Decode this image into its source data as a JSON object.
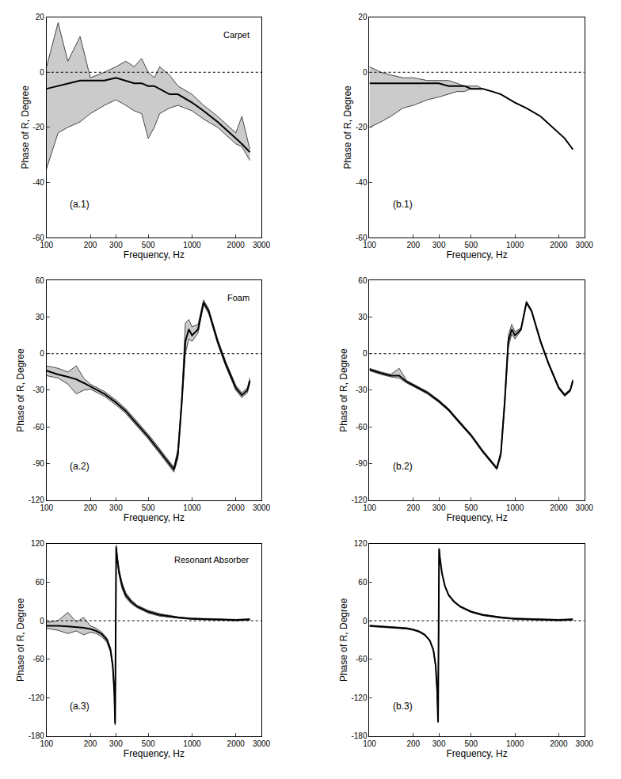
{
  "chart_data": [
    {
      "type": "line",
      "title": "Carpet",
      "annotations": [
        "(a.1)"
      ],
      "xlabel": "Frequency, Hz",
      "ylabel": "Phase of R, Degree",
      "log": "x",
      "grid": false,
      "hline": 0,
      "xlim": [
        100,
        3000
      ],
      "xticks": [
        100,
        200,
        300,
        500,
        1000,
        2000,
        3000
      ],
      "ylim": [
        -60,
        20
      ],
      "yticks": [
        -60,
        -40,
        -20,
        0,
        20
      ],
      "x": [
        100,
        120,
        140,
        170,
        200,
        250,
        300,
        350,
        400,
        450,
        500,
        550,
        600,
        700,
        800,
        1000,
        1200,
        1500,
        2000,
        2200,
        2500
      ],
      "series": [
        {
          "color": "#000000",
          "values": [
            -6,
            -5,
            -4,
            -3,
            -3,
            -3,
            -2,
            -3,
            -4,
            -4,
            -5,
            -5,
            -6,
            -8,
            -8,
            -11,
            -14,
            -18,
            -24,
            -26,
            -29
          ],
          "upper": [
            2,
            18,
            4,
            13,
            -2,
            0,
            2,
            4,
            2,
            5,
            0,
            -2,
            2,
            -1,
            -5,
            -8,
            -12,
            -16,
            -22,
            -16,
            -28
          ],
          "lower": [
            -35,
            -22,
            -20,
            -18,
            -15,
            -12,
            -10,
            -12,
            -14,
            -15,
            -24,
            -20,
            -15,
            -13,
            -12,
            -14,
            -17,
            -20,
            -26,
            -27,
            -32
          ]
        }
      ]
    },
    {
      "type": "line",
      "annotations": [
        "(b.1)"
      ],
      "xlabel": "Frequency, Hz",
      "ylabel": "Phase of R, Degree",
      "log": "x",
      "grid": false,
      "hline": 0,
      "xlim": [
        100,
        3000
      ],
      "xticks": [
        100,
        200,
        300,
        500,
        1000,
        2000,
        3000
      ],
      "ylim": [
        -60,
        20
      ],
      "yticks": [
        -60,
        -40,
        -20,
        0,
        20
      ],
      "x": [
        100,
        120,
        140,
        170,
        200,
        250,
        300,
        350,
        400,
        450,
        500,
        550,
        600,
        700,
        800,
        1000,
        1200,
        1500,
        2000,
        2200,
        2500
      ],
      "series": [
        {
          "color": "#000000",
          "values": [
            -4,
            -4,
            -4,
            -4,
            -4,
            -4,
            -4,
            -5,
            -5,
            -5,
            -6,
            -6,
            -6,
            -7,
            -8,
            -11,
            -13,
            -16,
            -22,
            -24,
            -28
          ],
          "upper": [
            2,
            0,
            -1,
            -2,
            -2,
            -3,
            -3,
            -3,
            -4,
            -5,
            -5,
            -5,
            -6,
            -7,
            -8,
            -11,
            -13,
            -16,
            -22,
            -24,
            -28
          ],
          "lower": [
            -20,
            -18,
            -16,
            -13,
            -12,
            -10,
            -9,
            -8,
            -7,
            -7,
            -6,
            -6,
            -6,
            -7,
            -8,
            -11,
            -13,
            -16,
            -22,
            -24,
            -28
          ]
        }
      ]
    },
    {
      "type": "line",
      "title": "Foam",
      "annotations": [
        "(a.2)"
      ],
      "xlabel": "Frequency, Hz",
      "ylabel": "Phase of R, Degree",
      "log": "x",
      "grid": false,
      "hline": 0,
      "xlim": [
        100,
        3000
      ],
      "xticks": [
        100,
        200,
        300,
        500,
        1000,
        2000,
        3000
      ],
      "ylim": [
        -120,
        60
      ],
      "yticks": [
        -120,
        -90,
        -60,
        -30,
        0,
        30,
        60
      ],
      "x": [
        100,
        120,
        140,
        160,
        180,
        200,
        250,
        300,
        350,
        400,
        500,
        600,
        700,
        750,
        800,
        850,
        900,
        950,
        1000,
        1100,
        1200,
        1300,
        1500,
        1700,
        2000,
        2200,
        2400,
        2500
      ],
      "series": [
        {
          "color": "#000000",
          "values": [
            -14,
            -17,
            -19,
            -21,
            -24,
            -27,
            -33,
            -40,
            -47,
            -55,
            -68,
            -80,
            -90,
            -95,
            -82,
            -40,
            10,
            20,
            15,
            20,
            42,
            35,
            10,
            -8,
            -28,
            -34,
            -30,
            -22
          ],
          "upper": [
            -10,
            -12,
            -15,
            -10,
            -20,
            -25,
            -31,
            -38,
            -45,
            -53,
            -66,
            -78,
            -88,
            -93,
            -78,
            -35,
            25,
            28,
            22,
            24,
            44,
            37,
            12,
            -6,
            -26,
            -32,
            -28,
            -20
          ],
          "lower": [
            -18,
            -20,
            -25,
            -33,
            -30,
            -29,
            -35,
            -42,
            -49,
            -57,
            -70,
            -82,
            -92,
            -97,
            -86,
            -45,
            0,
            12,
            10,
            17,
            40,
            33,
            8,
            -10,
            -30,
            -36,
            -32,
            -24
          ]
        }
      ]
    },
    {
      "type": "line",
      "annotations": [
        "(b.2)"
      ],
      "xlabel": "Frequency, Hz",
      "ylabel": "Phase of R, Degree",
      "log": "x",
      "grid": false,
      "hline": 0,
      "xlim": [
        100,
        3000
      ],
      "xticks": [
        100,
        200,
        300,
        500,
        1000,
        2000,
        3000
      ],
      "ylim": [
        -120,
        60
      ],
      "yticks": [
        -120,
        -90,
        -60,
        -30,
        0,
        30,
        60
      ],
      "x": [
        100,
        120,
        140,
        160,
        180,
        200,
        250,
        300,
        350,
        400,
        500,
        600,
        700,
        750,
        800,
        850,
        900,
        950,
        1000,
        1100,
        1200,
        1300,
        1500,
        1700,
        2000,
        2200,
        2400,
        2500
      ],
      "series": [
        {
          "color": "#000000",
          "values": [
            -13,
            -16,
            -18,
            -18,
            -23,
            -26,
            -32,
            -39,
            -46,
            -54,
            -67,
            -80,
            -90,
            -94,
            -82,
            -40,
            10,
            20,
            15,
            20,
            42,
            35,
            10,
            -8,
            -28,
            -34,
            -30,
            -22
          ],
          "upper": [
            -12,
            -15,
            -17,
            -12,
            -22,
            -25,
            -31,
            -38,
            -45,
            -53,
            -66,
            -79,
            -89,
            -93,
            -80,
            -37,
            15,
            24,
            18,
            21,
            43,
            36,
            11,
            -7,
            -27,
            -33,
            -29,
            -21
          ],
          "lower": [
            -14,
            -17,
            -19,
            -20,
            -24,
            -27,
            -33,
            -40,
            -47,
            -55,
            -68,
            -81,
            -91,
            -95,
            -84,
            -43,
            5,
            16,
            12,
            19,
            41,
            34,
            9,
            -9,
            -29,
            -35,
            -31,
            -23
          ]
        }
      ]
    },
    {
      "type": "line",
      "title": "Resonant Absorber",
      "annotations": [
        "(a.3)"
      ],
      "xlabel": "Frequency, Hz",
      "ylabel": "Phase of R, Degree",
      "log": "x",
      "grid": false,
      "hline": 0,
      "xlim": [
        100,
        3000
      ],
      "xticks": [
        100,
        200,
        300,
        500,
        1000,
        2000,
        3000
      ],
      "ylim": [
        -180,
        120
      ],
      "yticks": [
        -180,
        -120,
        -60,
        0,
        60,
        120
      ],
      "x": [
        100,
        120,
        140,
        160,
        180,
        200,
        220,
        240,
        260,
        275,
        285,
        292,
        296,
        301,
        305,
        315,
        330,
        350,
        380,
        420,
        500,
        600,
        800,
        1000,
        1500,
        2000,
        2500
      ],
      "series": [
        {
          "color": "#000000",
          "values": [
            -8,
            -8,
            -9,
            -10,
            -11,
            -13,
            -16,
            -21,
            -30,
            -45,
            -70,
            -110,
            -160,
            115,
            100,
            75,
            55,
            40,
            30,
            22,
            14,
            9,
            5,
            3,
            2,
            1,
            2
          ],
          "upper": [
            -3,
            0,
            13,
            -2,
            5,
            -8,
            -12,
            -18,
            -27,
            -42,
            -66,
            -106,
            -155,
            118,
            104,
            80,
            60,
            44,
            33,
            24,
            16,
            11,
            6,
            4,
            3,
            2,
            3
          ],
          "lower": [
            -12,
            -15,
            -20,
            -16,
            -22,
            -18,
            -20,
            -25,
            -34,
            -49,
            -74,
            -114,
            -163,
            112,
            96,
            72,
            50,
            36,
            27,
            20,
            12,
            7,
            4,
            2,
            1,
            0,
            1
          ]
        }
      ]
    },
    {
      "type": "line",
      "annotations": [
        "(b.3)"
      ],
      "xlabel": "Frequency, Hz",
      "ylabel": "Phase of R, Degree",
      "log": "x",
      "grid": false,
      "hline": 0,
      "xlim": [
        100,
        3000
      ],
      "xticks": [
        100,
        200,
        300,
        500,
        1000,
        2000,
        3000
      ],
      "ylim": [
        -180,
        120
      ],
      "yticks": [
        -180,
        -120,
        -60,
        0,
        60,
        120
      ],
      "x": [
        100,
        120,
        140,
        160,
        180,
        200,
        220,
        240,
        260,
        275,
        285,
        292,
        296,
        301,
        305,
        315,
        330,
        350,
        380,
        420,
        500,
        600,
        800,
        1000,
        1500,
        2000,
        2500
      ],
      "series": [
        {
          "color": "#000000",
          "values": [
            -8,
            -9,
            -10,
            -11,
            -12,
            -14,
            -17,
            -22,
            -31,
            -46,
            -70,
            -110,
            -158,
            112,
            98,
            74,
            54,
            40,
            30,
            22,
            14,
            9,
            5,
            3,
            2,
            1,
            2
          ],
          "upper": [
            -7,
            -8,
            -9,
            -10,
            -11,
            -13,
            -16,
            -21,
            -30,
            -45,
            -69,
            -109,
            -157,
            113,
            99,
            75,
            55,
            41,
            31,
            23,
            15,
            10,
            6,
            4,
            3,
            2,
            3
          ],
          "lower": [
            -9,
            -10,
            -11,
            -12,
            -13,
            -15,
            -18,
            -23,
            -32,
            -47,
            -71,
            -111,
            -159,
            111,
            97,
            73,
            53,
            39,
            29,
            21,
            13,
            8,
            4,
            2,
            1,
            0,
            1
          ]
        }
      ]
    }
  ]
}
